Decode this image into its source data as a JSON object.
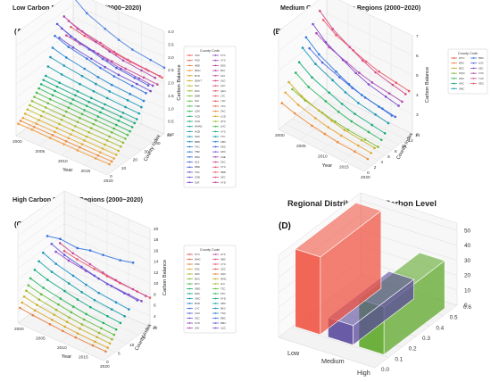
{
  "chart_data": [
    {
      "type": "line",
      "panel_label": "(A)",
      "title": "Low Carbon Balance Regions (2000~2020)",
      "xlabel": "Year",
      "ylabel": "County Index",
      "zlabel": "Carbon Balance",
      "x_ticks": [
        "2000",
        "2005",
        "2010",
        "2015",
        "2020"
      ],
      "y_ticks": [
        "0",
        "10",
        "20",
        "30",
        "40",
        "50"
      ],
      "z_ticks": [
        "0.0",
        "0.5",
        "1.0",
        "1.5",
        "2.0",
        "2.5",
        "3.0",
        "3.5",
        "4.0"
      ],
      "xlim": [
        2000,
        2020
      ],
      "ylim": [
        0,
        50
      ],
      "zlim": [
        0,
        4
      ],
      "legend_title": "County Code",
      "legend_entries": [
        "XAC",
        "FXD",
        "HBD",
        "MNH",
        "BYD",
        "QNHT",
        "SLC",
        "DZC",
        "DBR",
        "SJC",
        "TND",
        "LZM",
        "XCD",
        "SCD",
        "WHAD",
        "HCB",
        "SZD",
        "BBD",
        "TKC",
        "TBD",
        "RNC",
        "HLZ",
        "RBD",
        "TSC",
        "ZGB",
        "SLR",
        "FYC",
        "XYC",
        "ENC",
        "BJC",
        "ZLC",
        "SLD",
        "ALC",
        "QHC",
        "LTC",
        "YLD",
        "YFC",
        "ZAC",
        "LGD",
        "QTC",
        "LHC",
        "XYC",
        "TTC",
        "ZMC",
        "SNC",
        "HDC",
        "CSE",
        "ZAC",
        "XYC",
        "NBD",
        "SZC",
        "XYD"
      ],
      "legend_colors": [
        "#e8554e",
        "#e86a4a",
        "#e8803f",
        "#e89a3a",
        "#d9a62c",
        "#c9b02a",
        "#b1b72a",
        "#97bb2c",
        "#7dbd32",
        "#5fbd3c",
        "#40bb4a",
        "#27b65b",
        "#1bb06d",
        "#16aa80",
        "#15a493",
        "#169ea6",
        "#1897b6",
        "#1c8fc5",
        "#2186d1",
        "#2a7cda",
        "#3572df",
        "#4368e0",
        "#525fde",
        "#6257d9",
        "#7151d2",
        "#814ccb",
        "#914ac2",
        "#a048b8",
        "#ae47ad",
        "#bc47a2",
        "#c84896",
        "#d44a8a",
        "#de4d7e",
        "#e65273",
        "#ec5868",
        "#e8554e",
        "#e86a4a",
        "#e8803f",
        "#d9a62c",
        "#97bb2c",
        "#40bb4a",
        "#16aa80",
        "#1897b6",
        "#2a7cda",
        "#525fde",
        "#7151d2",
        "#a048b8",
        "#c84896",
        "#e65273",
        "#ec5868",
        "#de4d7e",
        "#bc47a2"
      ],
      "series": [
        {
          "color": "#f29a3a",
          "idx": 2,
          "values": [
            0.4,
            0.4,
            0.38,
            0.37,
            0.36,
            0.35,
            0.35
          ]
        },
        {
          "color": "#f08a3a",
          "idx": 4,
          "values": [
            0.45,
            0.44,
            0.43,
            0.42,
            0.41,
            0.4,
            0.4
          ]
        },
        {
          "color": "#e8a53a",
          "idx": 6,
          "values": [
            0.5,
            0.5,
            0.49,
            0.48,
            0.47,
            0.46,
            0.45
          ]
        },
        {
          "color": "#d9b22c",
          "idx": 8,
          "values": [
            0.6,
            0.58,
            0.57,
            0.56,
            0.55,
            0.54,
            0.53
          ]
        },
        {
          "color": "#c2b82a",
          "idx": 10,
          "values": [
            0.7,
            0.68,
            0.67,
            0.65,
            0.64,
            0.63,
            0.62
          ]
        },
        {
          "color": "#a9bb2c",
          "idx": 12,
          "values": [
            0.8,
            0.78,
            0.77,
            0.75,
            0.74,
            0.73,
            0.72
          ]
        },
        {
          "color": "#8ebd32",
          "idx": 14,
          "values": [
            0.9,
            0.88,
            0.86,
            0.85,
            0.84,
            0.82,
            0.81
          ]
        },
        {
          "color": "#6fbd3c",
          "idx": 16,
          "values": [
            1.0,
            0.98,
            0.96,
            0.94,
            0.93,
            0.92,
            0.9
          ]
        },
        {
          "color": "#4bbb4a",
          "idx": 18,
          "values": [
            1.1,
            1.07,
            1.05,
            1.03,
            1.02,
            1.0,
            0.98
          ]
        },
        {
          "color": "#2bb65b",
          "idx": 20,
          "values": [
            1.2,
            1.17,
            1.15,
            1.12,
            1.1,
            1.08,
            1.06
          ]
        },
        {
          "color": "#1bb06d",
          "idx": 22,
          "values": [
            1.3,
            1.27,
            1.24,
            1.22,
            1.2,
            1.18,
            1.16
          ]
        },
        {
          "color": "#16aa80",
          "idx": 24,
          "values": [
            1.4,
            1.37,
            1.34,
            1.31,
            1.29,
            1.27,
            1.25
          ]
        },
        {
          "color": "#15a493",
          "idx": 26,
          "values": [
            1.5,
            1.46,
            1.43,
            1.4,
            1.38,
            1.36,
            1.34
          ]
        },
        {
          "color": "#169ea6",
          "idx": 28,
          "values": [
            1.8,
            1.72,
            1.65,
            1.6,
            1.56,
            1.52,
            1.5
          ]
        },
        {
          "color": "#1897b6",
          "idx": 30,
          "values": [
            2.1,
            2.0,
            1.9,
            1.82,
            1.76,
            1.72,
            1.68
          ]
        },
        {
          "color": "#2186d1",
          "idx": 32,
          "values": [
            2.4,
            2.25,
            2.12,
            2.02,
            1.95,
            1.9,
            1.86
          ]
        },
        {
          "color": "#3572df",
          "idx": 34,
          "values": [
            2.8,
            2.6,
            2.45,
            2.32,
            2.22,
            2.15,
            2.1
          ]
        },
        {
          "color": "#525fde",
          "idx": 36,
          "values": [
            3.2,
            2.95,
            2.75,
            2.6,
            2.48,
            2.4,
            2.34
          ]
        },
        {
          "color": "#7151d2",
          "idx": 38,
          "values": [
            2.6,
            2.45,
            2.32,
            2.22,
            2.15,
            2.1,
            2.05
          ]
        },
        {
          "color": "#914ac2",
          "idx": 40,
          "values": [
            2.9,
            2.7,
            2.55,
            2.42,
            2.32,
            2.25,
            2.2
          ]
        },
        {
          "color": "#ae47ad",
          "idx": 42,
          "values": [
            3.3,
            3.05,
            2.85,
            2.7,
            2.58,
            2.5,
            2.44
          ]
        },
        {
          "color": "#c84896",
          "idx": 44,
          "values": [
            2.5,
            2.4,
            2.32,
            2.25,
            2.2,
            2.16,
            2.12
          ]
        },
        {
          "color": "#de4d7e",
          "idx": 46,
          "values": [
            3.0,
            2.82,
            2.68,
            2.56,
            2.48,
            2.42,
            2.38
          ]
        },
        {
          "color": "#ec5868",
          "idx": 48,
          "values": [
            2.7,
            2.58,
            2.48,
            2.4,
            2.34,
            2.3,
            2.26
          ]
        },
        {
          "color": "#4d7fe0",
          "idx": 50,
          "values": [
            3.8,
            3.4,
            3.1,
            2.9,
            2.75,
            2.65,
            2.58
          ]
        }
      ]
    },
    {
      "type": "line",
      "panel_label": "(B)",
      "title": "Medium Carbon Balance Regions (2000~2020)",
      "xlabel": "Year",
      "ylabel": "County Index",
      "zlabel": "Carbon Balance",
      "x_ticks": [
        "2000",
        "2005",
        "2010",
        "2015",
        "2020"
      ],
      "y_ticks": [
        "0",
        "2",
        "4",
        "6",
        "8",
        "10",
        "12",
        "14"
      ],
      "z_ticks": [
        "2",
        "3",
        "4",
        "5",
        "6",
        "7"
      ],
      "xlim": [
        2000,
        2020
      ],
      "ylim": [
        0,
        14
      ],
      "zlim": [
        2,
        7
      ],
      "legend_title": "County Code",
      "legend_entries": [
        "WYC",
        "BNC",
        "BSC",
        "WQC",
        "HNC",
        "ADC",
        "SMC",
        "BRC",
        "LNC",
        "LBC",
        "CXC",
        "TUC",
        "GEC"
      ],
      "legend_colors": [
        "#e8554e",
        "#e8803f",
        "#c9b02a",
        "#7dbd32",
        "#27b65b",
        "#16aa80",
        "#1897b6",
        "#2a7cda",
        "#525fde",
        "#814ccb",
        "#ae47ad",
        "#d44a8a",
        "#ec5868"
      ],
      "series": [
        {
          "color": "#f08a3a",
          "idx": 1,
          "values": [
            3.2,
            3.0,
            2.8,
            2.7,
            2.6,
            2.55,
            2.5
          ]
        },
        {
          "color": "#e8a53a",
          "idx": 2,
          "values": [
            3.6,
            3.3,
            3.05,
            2.9,
            2.8,
            2.72,
            2.66
          ]
        },
        {
          "color": "#c9b02a",
          "idx": 3,
          "values": [
            4.0,
            3.6,
            3.3,
            3.1,
            2.95,
            2.85,
            2.78
          ]
        },
        {
          "color": "#7dbd32",
          "idx": 4,
          "values": [
            3.5,
            3.25,
            3.05,
            2.92,
            2.82,
            2.75,
            2.7
          ]
        },
        {
          "color": "#27b65b",
          "idx": 5,
          "values": [
            4.2,
            3.8,
            3.5,
            3.28,
            3.12,
            3.0,
            2.92
          ]
        },
        {
          "color": "#16aa80",
          "idx": 6,
          "values": [
            4.6,
            4.15,
            3.8,
            3.55,
            3.36,
            3.22,
            3.12
          ]
        },
        {
          "color": "#1897b6",
          "idx": 7,
          "values": [
            5.2,
            4.7,
            4.3,
            4.0,
            3.78,
            3.62,
            3.5
          ]
        },
        {
          "color": "#2a7cda",
          "idx": 8,
          "values": [
            5.6,
            5.05,
            4.6,
            4.28,
            4.05,
            3.88,
            3.75
          ]
        },
        {
          "color": "#525fde",
          "idx": 9,
          "values": [
            4.9,
            4.5,
            4.18,
            3.95,
            3.78,
            3.65,
            3.55
          ]
        },
        {
          "color": "#814ccb",
          "idx": 10,
          "values": [
            6.0,
            5.4,
            4.92,
            4.58,
            4.32,
            4.12,
            3.98
          ]
        },
        {
          "color": "#ae47ad",
          "idx": 11,
          "values": [
            5.4,
            5.0,
            4.68,
            4.45,
            4.28,
            4.15,
            4.05
          ]
        },
        {
          "color": "#d44a8a",
          "idx": 12,
          "values": [
            6.4,
            5.8,
            5.3,
            4.94,
            4.66,
            4.45,
            4.3
          ]
        },
        {
          "color": "#ec5868",
          "idx": 13,
          "values": [
            5.8,
            5.35,
            5.0,
            4.75,
            4.56,
            4.42,
            4.32
          ]
        }
      ]
    },
    {
      "type": "line",
      "panel_label": "(C)",
      "title": "High Carbon Balance Regions (2000~2020)",
      "xlabel": "Year",
      "ylabel": "County Index",
      "zlabel": "Carbon Balance",
      "x_ticks": [
        "2000",
        "2005",
        "2010",
        "2015",
        "2020"
      ],
      "y_ticks": [
        "0",
        "5",
        "10",
        "15",
        "20"
      ],
      "z_ticks": [
        "2",
        "4",
        "6",
        "8",
        "10",
        "12",
        "14",
        "16",
        "18",
        "20"
      ],
      "xlim": [
        2000,
        2020
      ],
      "ylim": [
        0,
        22
      ],
      "zlim": [
        2,
        20
      ],
      "legend_title": "County Code",
      "legend_entries": [
        "SYC",
        "WHC",
        "FNC",
        "ZNC",
        "JMC",
        "BUC",
        "ETC",
        "SMD",
        "DRC",
        "CMC",
        "BUD",
        "LYC",
        "CGC",
        "SZC",
        "SYD",
        "JNC",
        "HYC",
        "NBC",
        "CYC",
        "SSC",
        "HNC",
        "WNC",
        "JLC",
        "TZC",
        "ZTC",
        "HYD",
        "HBC",
        "BKC",
        "TNC",
        "RBC",
        "BMC",
        "LQC"
      ],
      "legend_colors": [
        "#e8554e",
        "#e86a4a",
        "#e8803f",
        "#d9a62c",
        "#b1b72a",
        "#7dbd32",
        "#40bb4a",
        "#1bb06d",
        "#15a493",
        "#1897b6",
        "#2186d1",
        "#3572df",
        "#525fde",
        "#7151d2",
        "#914ac2",
        "#ae47ad",
        "#c84896",
        "#de4d7e",
        "#ec5868",
        "#e8554e",
        "#e8803f",
        "#c9b02a",
        "#97bb2c",
        "#5fbd3c",
        "#27b65b",
        "#16aa80",
        "#169ea6",
        "#1c8fc5",
        "#2a7cda",
        "#4368e0",
        "#6257d9",
        "#814ccb"
      ],
      "series": [
        {
          "color": "#e8803f",
          "idx": 1,
          "values": [
            4.5,
            4.2,
            3.9,
            3.7,
            3.55,
            3.45,
            3.4
          ]
        },
        {
          "color": "#d9a62c",
          "idx": 2,
          "values": [
            5.2,
            4.8,
            4.45,
            4.2,
            4.0,
            3.88,
            3.8
          ]
        },
        {
          "color": "#c9b02a",
          "idx": 3,
          "values": [
            6.0,
            5.5,
            5.1,
            4.8,
            4.58,
            4.42,
            4.3
          ]
        },
        {
          "color": "#97bb2c",
          "idx": 4,
          "values": [
            6.8,
            6.2,
            5.7,
            5.35,
            5.1,
            4.9,
            4.76
          ]
        },
        {
          "color": "#5fbd3c",
          "idx": 5,
          "values": [
            7.5,
            6.9,
            6.4,
            6.0,
            5.7,
            5.48,
            5.32
          ]
        },
        {
          "color": "#27b65b",
          "idx": 6,
          "values": [
            8.5,
            7.8,
            7.2,
            6.75,
            6.42,
            6.18,
            6.0
          ]
        },
        {
          "color": "#16aa80",
          "idx": 8,
          "values": [
            9.5,
            8.7,
            8.0,
            7.5,
            7.12,
            6.84,
            6.64
          ]
        },
        {
          "color": "#169ea6",
          "idx": 10,
          "values": [
            10.5,
            9.6,
            8.85,
            8.28,
            7.85,
            7.54,
            7.3
          ]
        },
        {
          "color": "#1c8fc5",
          "idx": 12,
          "values": [
            11.5,
            10.5,
            9.7,
            9.08,
            8.6,
            8.25,
            8.0
          ]
        },
        {
          "color": "#3572df",
          "idx": 14,
          "values": [
            14.0,
            14.5,
            14.2,
            14.8,
            15.0,
            15.4,
            16.0
          ]
        },
        {
          "color": "#6257d9",
          "idx": 16,
          "values": [
            12.0,
            11.0,
            10.2,
            9.6,
            9.12,
            8.78,
            8.52
          ]
        },
        {
          "color": "#914ac2",
          "idx": 18,
          "values": [
            10.0,
            9.4,
            8.9,
            8.5,
            8.2,
            7.98,
            7.82
          ]
        },
        {
          "color": "#c84896",
          "idx": 20,
          "values": [
            11.0,
            10.2,
            9.55,
            9.05,
            8.68,
            8.4,
            8.2
          ]
        },
        {
          "color": "#ec5868",
          "idx": 22,
          "values": [
            9.0,
            8.5,
            8.1,
            7.8,
            7.58,
            7.42,
            7.3
          ]
        }
      ]
    },
    {
      "type": "bar",
      "panel_label": "(D)",
      "title": "Regional Distribution by Carbon Level",
      "categories": [
        "Low",
        "Medium",
        "High"
      ],
      "values": [
        52,
        13,
        32
      ],
      "colors": [
        "#f05545",
        "#5a4a9c",
        "#5ea82a"
      ],
      "z_ticks": [
        "0",
        "10",
        "20",
        "30",
        "40",
        "50"
      ],
      "y_ticks": [
        "0.0",
        "0.1",
        "0.2",
        "0.3",
        "0.4",
        "0.5",
        "0.6"
      ],
      "zlim": [
        0,
        55
      ]
    }
  ]
}
